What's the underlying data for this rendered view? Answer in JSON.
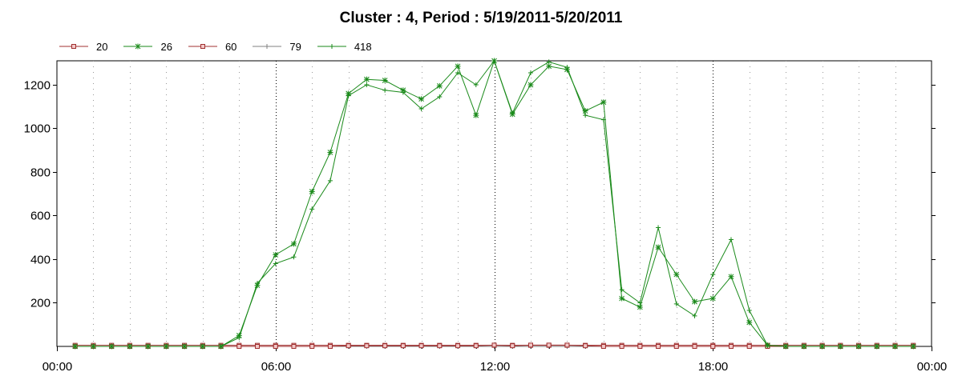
{
  "chart_data": {
    "type": "line",
    "title": "Cluster : 4, Period : 5/19/2011-5/20/2011",
    "xlabel": "",
    "ylabel": "",
    "xlim": [
      0,
      24
    ],
    "ylim": [
      0,
      1310
    ],
    "x_ticks": [
      0,
      6,
      12,
      18,
      24
    ],
    "x_tick_labels": [
      "00:00",
      "06:00",
      "12:00",
      "18:00",
      "00:00"
    ],
    "y_ticks": [
      200,
      400,
      600,
      800,
      1000,
      1200
    ],
    "y_tick_labels": [
      "200",
      "400",
      "600",
      "800",
      "1000",
      "1200"
    ],
    "grid": true,
    "legend_position": "top-left",
    "x": [
      0.5,
      1,
      1.5,
      2,
      2.5,
      3,
      3.5,
      4,
      4.5,
      5,
      5.5,
      6,
      6.5,
      7,
      7.5,
      8,
      8.5,
      9,
      9.5,
      10,
      10.5,
      11,
      11.5,
      12,
      12.5,
      13,
      13.5,
      14,
      14.5,
      15,
      15.5,
      16,
      16.5,
      17,
      17.5,
      18,
      18.5,
      19,
      19.5,
      20,
      20.5,
      21,
      21.5,
      22,
      22.5,
      23,
      23.5
    ],
    "series": [
      {
        "name": "20",
        "color": "#a03030",
        "marker": "square",
        "values": [
          5,
          5,
          5,
          5,
          5,
          5,
          5,
          5,
          5,
          5,
          5,
          5,
          5,
          5,
          5,
          5,
          5,
          5,
          5,
          5,
          5,
          5,
          5,
          5,
          5,
          5,
          5,
          5,
          5,
          5,
          5,
          5,
          5,
          5,
          5,
          5,
          5,
          5,
          5,
          5,
          5,
          5,
          5,
          5,
          5,
          5,
          5
        ]
      },
      {
        "name": "26",
        "color": "#1a8a1a",
        "marker": "star",
        "values": [
          0,
          0,
          0,
          0,
          0,
          0,
          0,
          0,
          0,
          50,
          280,
          420,
          470,
          710,
          890,
          1160,
          1225,
          1220,
          1175,
          1135,
          1195,
          1285,
          1060,
          1310,
          1065,
          1200,
          1285,
          1270,
          1080,
          1120,
          220,
          180,
          455,
          330,
          205,
          220,
          320,
          110,
          5,
          0,
          0,
          0,
          0,
          0,
          0,
          0,
          0
        ]
      },
      {
        "name": "60",
        "color": "#a03030",
        "marker": "square",
        "values": [
          0,
          0,
          0,
          0,
          0,
          0,
          0,
          0,
          0,
          0,
          0,
          0,
          0,
          0,
          0,
          3,
          3,
          3,
          3,
          3,
          3,
          3,
          3,
          6,
          3,
          6,
          6,
          6,
          3,
          0,
          0,
          0,
          0,
          0,
          0,
          0,
          0,
          0,
          0,
          0,
          0,
          0,
          0,
          0,
          0,
          0,
          0
        ]
      },
      {
        "name": "79",
        "color": "#808080",
        "marker": "plus",
        "values": [
          0,
          0,
          0,
          0,
          0,
          0,
          0,
          0,
          0,
          0,
          0,
          0,
          0,
          0,
          0,
          0,
          0,
          0,
          0,
          0,
          0,
          0,
          0,
          0,
          0,
          0,
          0,
          0,
          0,
          0,
          0,
          0,
          0,
          0,
          0,
          0,
          0,
          0,
          0,
          0,
          0,
          0,
          0,
          0,
          0,
          0,
          0
        ]
      },
      {
        "name": "418",
        "color": "#1a8a1a",
        "marker": "plus",
        "values": [
          0,
          0,
          0,
          0,
          0,
          0,
          0,
          0,
          0,
          40,
          290,
          380,
          410,
          630,
          760,
          1150,
          1200,
          1175,
          1165,
          1090,
          1145,
          1255,
          1200,
          1310,
          1070,
          1255,
          1305,
          1280,
          1060,
          1040,
          260,
          200,
          545,
          195,
          140,
          330,
          490,
          165,
          5,
          0,
          0,
          0,
          0,
          0,
          0,
          0,
          0
        ]
      }
    ]
  }
}
